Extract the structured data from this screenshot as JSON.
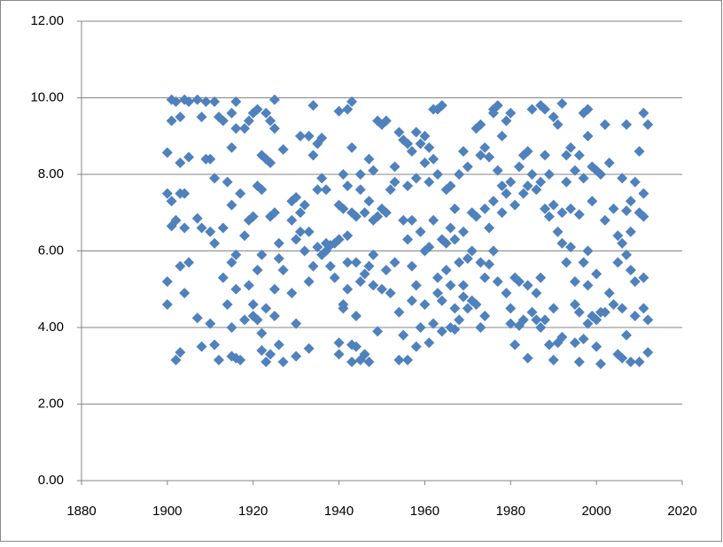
{
  "chart_data": {
    "type": "scatter",
    "color": "#4f81bd",
    "grid": true,
    "xlim": [
      1880,
      2020
    ],
    "xticks": [
      1880,
      1900,
      1920,
      1940,
      1960,
      1980,
      2000,
      2020
    ],
    "ylim": [
      0,
      12
    ],
    "yticks": [
      {
        "value": 0,
        "label": "0.00"
      },
      {
        "value": 2,
        "label": "2.00"
      },
      {
        "value": 4,
        "label": "4.00"
      },
      {
        "value": 6,
        "label": "6.00"
      },
      {
        "value": 8,
        "label": "8.00"
      },
      {
        "value": 10,
        "label": "10.00"
      },
      {
        "value": 12,
        "label": "12.00"
      }
    ],
    "x": [
      1900,
      1900,
      1900,
      1900,
      1901,
      1901,
      1901,
      1901,
      1902,
      1902,
      1902,
      1903,
      1903,
      1903,
      1903,
      1903,
      1904,
      1904,
      1904,
      1904,
      1905,
      1905,
      1905,
      1907,
      1907,
      1907,
      1908,
      1908,
      1908,
      1909,
      1909,
      1910,
      1910,
      1910,
      1911,
      1911,
      1911,
      1911,
      1912,
      1912,
      1913,
      1913,
      1913,
      1914,
      1914,
      1915,
      1915,
      1915,
      1915,
      1915,
      1915,
      1916,
      1916,
      1916,
      1916,
      1916,
      1917,
      1917,
      1918,
      1918,
      1918,
      1919,
      1919,
      1919,
      1920,
      1920,
      1920,
      1920,
      1921,
      1921,
      1921,
      1921,
      1922,
      1922,
      1922,
      1922,
      1922,
      1923,
      1923,
      1923,
      1923,
      1924,
      1924,
      1924,
      1924,
      1925,
      1925,
      1925,
      1925,
      1925,
      1926,
      1926,
      1926,
      1927,
      1927,
      1927,
      1929,
      1929,
      1929,
      1930,
      1930,
      1930,
      1930,
      1931,
      1931,
      1931,
      1932,
      1932,
      1933,
      1933,
      1933,
      1933,
      1934,
      1934,
      1934,
      1935,
      1935,
      1935,
      1936,
      1936,
      1936,
      1937,
      1937,
      1937,
      1938,
      1938,
      1939,
      1939,
      1940,
      1940,
      1940,
      1940,
      1940,
      1941,
      1941,
      1941,
      1941,
      1942,
      1942,
      1942,
      1942,
      1942,
      1943,
      1943,
      1943,
      1943,
      1943,
      1944,
      1944,
      1944,
      1944,
      1945,
      1945,
      1945,
      1945,
      1946,
      1946,
      1946,
      1947,
      1947,
      1947,
      1947,
      1948,
      1948,
      1948,
      1948,
      1949,
      1949,
      1949,
      1950,
      1950,
      1950,
      1951,
      1951,
      1951,
      1952,
      1952,
      1953,
      1953,
      1953,
      1954,
      1954,
      1954,
      1955,
      1955,
      1955,
      1956,
      1956,
      1956,
      1956,
      1957,
      1957,
      1957,
      1957,
      1958,
      1958,
      1958,
      1958,
      1959,
      1959,
      1959,
      1960,
      1960,
      1960,
      1960,
      1961,
      1961,
      1961,
      1961,
      1962,
      1962,
      1962,
      1962,
      1963,
      1963,
      1963,
      1963,
      1964,
      1964,
      1964,
      1964,
      1965,
      1965,
      1965,
      1966,
      1966,
      1966,
      1966,
      1967,
      1967,
      1967,
      1967,
      1968,
      1968,
      1968,
      1969,
      1969,
      1969,
      1969,
      1970,
      1970,
      1970,
      1971,
      1971,
      1971,
      1972,
      1972,
      1972,
      1973,
      1973,
      1973,
      1973,
      1974,
      1974,
      1974,
      1974,
      1975,
      1975,
      1975,
      1976,
      1976,
      1976,
      1976,
      1977,
      1977,
      1977,
      1978,
      1978,
      1978,
      1979,
      1979,
      1979,
      1980,
      1980,
      1980,
      1980,
      1981,
      1981,
      1981,
      1982,
      1982,
      1982,
      1983,
      1983,
      1983,
      1984,
      1984,
      1984,
      1984,
      1985,
      1985,
      1985,
      1986,
      1986,
      1986,
      1987,
      1987,
      1987,
      1987,
      1988,
      1988,
      1988,
      1988,
      1989,
      1989,
      1989,
      1990,
      1990,
      1990,
      1990,
      1991,
      1991,
      1991,
      1992,
      1992,
      1992,
      1992,
      1993,
      1993,
      1993,
      1994,
      1994,
      1994,
      1995,
      1995,
      1995,
      1995,
      1996,
      1996,
      1996,
      1996,
      1997,
      1997,
      1997,
      1997,
      1998,
      1998,
      1998,
      1998,
      1998,
      1999,
      1999,
      1999,
      2000,
      2000,
      2000,
      2000,
      2001,
      2001,
      2001,
      2002,
      2002,
      2002,
      2003,
      2003,
      2004,
      2004,
      2005,
      2005,
      2005,
      2006,
      2006,
      2006,
      2006,
      2007,
      2007,
      2007,
      2007,
      2008,
      2008,
      2008,
      2008,
      2009,
      2009,
      2009,
      2010,
      2010,
      2010,
      2011,
      2011,
      2011,
      2011,
      2011,
      2012,
      2012,
      2012
    ],
    "values": [
      8.57,
      7.5,
      5.2,
      4.6,
      9.95,
      9.4,
      7.3,
      6.65,
      6.8,
      3.15,
      9.9,
      9.5,
      8.3,
      7.5,
      5.6,
      3.35,
      9.95,
      7.5,
      6.6,
      4.9,
      8.45,
      5.7,
      9.9,
      9.95,
      6.85,
      4.25,
      9.5,
      6.6,
      3.5,
      8.4,
      9.9,
      8.4,
      6.5,
      4.1,
      9.9,
      7.9,
      6.2,
      3.55,
      9.5,
      3.15,
      9.4,
      6.6,
      5.3,
      7.8,
      4.6,
      9.6,
      8.7,
      7.2,
      5.7,
      4.0,
      3.25,
      9.9,
      9.2,
      5.9,
      5.0,
      3.2,
      7.5,
      3.15,
      9.2,
      6.4,
      4.2,
      9.4,
      6.8,
      5.1,
      9.6,
      6.9,
      4.6,
      4.3,
      9.7,
      7.7,
      5.5,
      4.2,
      8.5,
      7.6,
      5.9,
      3.85,
      3.4,
      9.6,
      8.4,
      4.5,
      3.1,
      9.4,
      8.3,
      6.9,
      3.3,
      9.95,
      9.2,
      7.0,
      5.0,
      4.3,
      6.2,
      5.8,
      3.55,
      8.65,
      5.5,
      3.1,
      7.3,
      6.8,
      4.9,
      7.4,
      6.3,
      4.1,
      3.25,
      9.0,
      7.0,
      6.5,
      7.2,
      6.0,
      9.0,
      6.5,
      5.2,
      3.45,
      9.8,
      8.5,
      5.6,
      8.8,
      7.6,
      6.1,
      8.95,
      7.9,
      5.9,
      7.6,
      6.2,
      6.0,
      6.15,
      5.6,
      6.2,
      5.3,
      9.65,
      7.2,
      6.3,
      3.6,
      3.3,
      8.0,
      7.1,
      4.6,
      4.5,
      9.7,
      7.7,
      6.4,
      5.7,
      5.0,
      9.9,
      8.7,
      7.0,
      3.55,
      3.1,
      6.9,
      5.7,
      4.3,
      3.5,
      8.0,
      7.6,
      5.2,
      3.15,
      7.0,
      5.4,
      3.3,
      8.4,
      7.3,
      5.6,
      3.1,
      8.1,
      6.8,
      5.9,
      5.1,
      9.4,
      6.9,
      3.9,
      9.3,
      7.1,
      5.0,
      9.4,
      7.0,
      5.5,
      7.6,
      4.9,
      8.2,
      7.8,
      5.7,
      9.1,
      4.4,
      3.15,
      8.9,
      6.8,
      3.8,
      8.8,
      7.7,
      6.3,
      3.15,
      8.6,
      6.8,
      5.6,
      4.7,
      9.1,
      7.9,
      5.1,
      3.5,
      8.8,
      6.5,
      4.0,
      9.0,
      8.3,
      6.0,
      4.6,
      8.7,
      7.8,
      6.1,
      3.6,
      9.7,
      8.4,
      6.8,
      4.1,
      9.7,
      8.0,
      5.3,
      4.9,
      9.8,
      6.3,
      4.7,
      3.9,
      7.6,
      6.2,
      5.5,
      7.7,
      6.6,
      5.1,
      4.0,
      7.1,
      6.3,
      4.5,
      3.95,
      8.0,
      5.7,
      4.2,
      8.6,
      6.5,
      5.1,
      4.8,
      8.2,
      5.8,
      4.5,
      7.0,
      6.0,
      4.7,
      9.2,
      6.9,
      4.6,
      9.3,
      8.5,
      5.7,
      4.0,
      8.7,
      7.1,
      5.3,
      4.3,
      8.45,
      6.6,
      5.65,
      9.7,
      9.6,
      7.3,
      6.0,
      9.8,
      8.1,
      5.2,
      9.0,
      7.7,
      7.0,
      9.4,
      7.5,
      4.9,
      9.6,
      7.8,
      4.5,
      4.1,
      7.2,
      5.3,
      3.55,
      8.2,
      5.2,
      4.05,
      8.5,
      7.5,
      4.2,
      8.6,
      7.7,
      5.1,
      3.2,
      9.7,
      8.0,
      4.4,
      7.6,
      4.9,
      4.2,
      9.8,
      7.8,
      5.3,
      4.0,
      9.7,
      8.5,
      7.1,
      4.2,
      8.0,
      6.9,
      3.55,
      9.5,
      7.2,
      4.5,
      3.15,
      9.3,
      6.5,
      3.6,
      9.85,
      7.0,
      6.2,
      3.75,
      8.5,
      7.8,
      5.7,
      8.7,
      7.1,
      6.1,
      8.1,
      5.2,
      4.6,
      3.6,
      8.5,
      6.95,
      4.4,
      3.1,
      9.6,
      7.9,
      5.7,
      3.7,
      9.7,
      9.0,
      6.0,
      5.1,
      4.1,
      8.2,
      7.3,
      4.3,
      8.1,
      5.4,
      4.2,
      3.5,
      8.0,
      4.4,
      3.05,
      9.3,
      6.8,
      4.4,
      8.3,
      4.9,
      7.1,
      4.6,
      6.4,
      5.7,
      3.3,
      7.9,
      6.2,
      4.5,
      3.2,
      9.3,
      7.05,
      5.9,
      3.8,
      7.3,
      6.5,
      5.5,
      3.1,
      7.8,
      5.2,
      4.3,
      8.6,
      7.0,
      3.1,
      9.6,
      7.5,
      6.9,
      5.3,
      4.5,
      9.3,
      4.2,
      3.35
    ]
  }
}
